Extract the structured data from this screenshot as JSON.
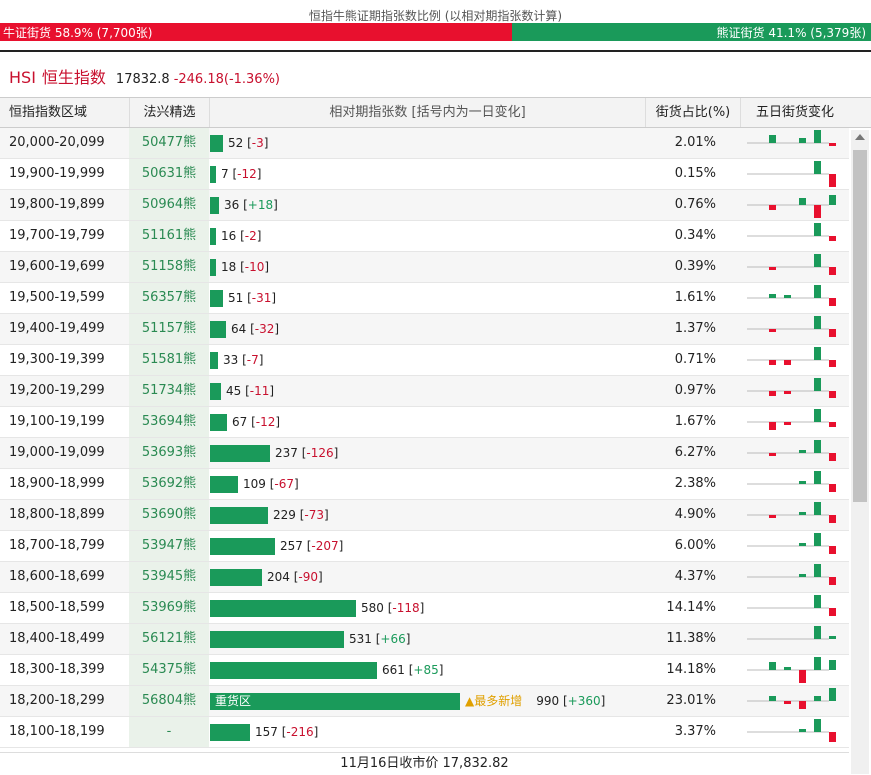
{
  "caption": "恒指牛熊证期指张数比例 (以相对期指张数计算)",
  "bull_bar": "牛证街货 58.9% (7,700张)",
  "bear_bar": "熊证街货 41.1% (5,379张)",
  "index": {
    "code": "HSI",
    "name": "恒生指数",
    "price": "17832.8",
    "change": "-246.18(-1.36%)"
  },
  "headers": {
    "range": "恒指指数区域",
    "pick": "法兴精选",
    "contracts": "相对期指张数 [括号内为一日变化]",
    "share": "街货占比(%)",
    "five_day": "五日街货变化"
  },
  "colors": {
    "bull": "#e8102e",
    "bear": "#1a9a5a",
    "up": "#1a9a5a",
    "down": "#e8102e"
  },
  "rows": [
    {
      "range": "20,000-20,099",
      "bear": "50477熊",
      "count": 52,
      "count_text": "52",
      "change": "-3",
      "share": "2.01%",
      "five_day": [
        0.6,
        0,
        0.4,
        1.0,
        -0.2
      ]
    },
    {
      "range": "19,900-19,999",
      "bear": "50631熊",
      "count": 7,
      "count_text": "7",
      "change": "-12",
      "share": "0.15%",
      "five_day": [
        0,
        0,
        0,
        1.0,
        -1.0
      ]
    },
    {
      "range": "19,800-19,899",
      "bear": "50964熊",
      "count": 36,
      "count_text": "36",
      "change": "+18",
      "share": "0.76%",
      "five_day": [
        -0.4,
        0,
        0.5,
        -1.0,
        0.8
      ]
    },
    {
      "range": "19,700-19,799",
      "bear": "51161熊",
      "count": 16,
      "count_text": "16",
      "change": "-2",
      "share": "0.34%",
      "five_day": [
        0,
        0,
        0,
        1.0,
        -0.4
      ]
    },
    {
      "range": "19,600-19,699",
      "bear": "51158熊",
      "count": 18,
      "count_text": "18",
      "change": "-10",
      "share": "0.39%",
      "five_day": [
        -0.2,
        0,
        0,
        1.0,
        -0.6
      ]
    },
    {
      "range": "19,500-19,599",
      "bear": "56357熊",
      "count": 51,
      "count_text": "51",
      "change": "-31",
      "share": "1.61%",
      "five_day": [
        0.3,
        0.2,
        0,
        1.0,
        -0.6
      ]
    },
    {
      "range": "19,400-19,499",
      "bear": "51157熊",
      "count": 64,
      "count_text": "64",
      "change": "-32",
      "share": "1.37%",
      "five_day": [
        -0.2,
        0,
        0,
        1.0,
        -0.6
      ]
    },
    {
      "range": "19,300-19,399",
      "bear": "51581熊",
      "count": 33,
      "count_text": "33",
      "change": "-7",
      "share": "0.71%",
      "five_day": [
        -0.4,
        -0.4,
        0,
        1.0,
        -0.5
      ]
    },
    {
      "range": "19,200-19,299",
      "bear": "51734熊",
      "count": 45,
      "count_text": "45",
      "change": "-11",
      "share": "0.97%",
      "five_day": [
        -0.4,
        -0.2,
        0,
        1.0,
        -0.5
      ]
    },
    {
      "range": "19,100-19,199",
      "bear": "53694熊",
      "count": 67,
      "count_text": "67",
      "change": "-12",
      "share": "1.67%",
      "five_day": [
        -0.6,
        -0.2,
        0,
        1.0,
        -0.4
      ]
    },
    {
      "range": "19,000-19,099",
      "bear": "53693熊",
      "count": 237,
      "count_text": "237",
      "change": "-126",
      "share": "6.27%",
      "five_day": [
        -0.2,
        0,
        0.2,
        1.0,
        -0.6
      ]
    },
    {
      "range": "18,900-18,999",
      "bear": "53692熊",
      "count": 109,
      "count_text": "109",
      "change": "-67",
      "share": "2.38%",
      "five_day": [
        0,
        0,
        0.2,
        1.0,
        -0.6
      ]
    },
    {
      "range": "18,800-18,899",
      "bear": "53690熊",
      "count": 229,
      "count_text": "229",
      "change": "-73",
      "share": "4.90%",
      "five_day": [
        -0.2,
        0,
        0.2,
        1.0,
        -0.6
      ]
    },
    {
      "range": "18,700-18,799",
      "bear": "53947熊",
      "count": 257,
      "count_text": "257",
      "change": "-207",
      "share": "6.00%",
      "five_day": [
        0,
        0,
        0.2,
        1.0,
        -0.6
      ]
    },
    {
      "range": "18,600-18,699",
      "bear": "53945熊",
      "count": 204,
      "count_text": "204",
      "change": "-90",
      "share": "4.37%",
      "five_day": [
        0,
        0,
        0.2,
        1.0,
        -0.6
      ]
    },
    {
      "range": "18,500-18,599",
      "bear": "53969熊",
      "count": 580,
      "count_text": "580",
      "change": "-118",
      "share": "14.14%",
      "five_day": [
        0,
        0,
        0,
        1.0,
        -0.6
      ]
    },
    {
      "range": "18,400-18,499",
      "bear": "56121熊",
      "count": 531,
      "count_text": "531",
      "change": "+66",
      "share": "11.38%",
      "five_day": [
        0,
        0,
        0,
        1.0,
        0.2
      ]
    },
    {
      "range": "18,300-18,399",
      "bear": "54375熊",
      "count": 661,
      "count_text": "661",
      "change": "+85",
      "share": "14.18%",
      "five_day": [
        0.6,
        0.2,
        -1.0,
        1.0,
        0.8
      ]
    },
    {
      "range": "18,200-18,299",
      "bear": "56804熊",
      "count": 990,
      "count_text": "990",
      "change": "+360",
      "share": "23.01%",
      "five_day": [
        0.4,
        -0.2,
        -0.6,
        0.4,
        1.0
      ],
      "label": "重货区",
      "flag": "▲最多新增"
    },
    {
      "range": "18,100-18,199",
      "bear": "-",
      "count": 157,
      "count_text": "157",
      "change": "-216",
      "share": "3.37%",
      "five_day": [
        0,
        0,
        0.2,
        1.0,
        -0.8
      ]
    }
  ],
  "footer": "11月16日收市价 17,832.82"
}
